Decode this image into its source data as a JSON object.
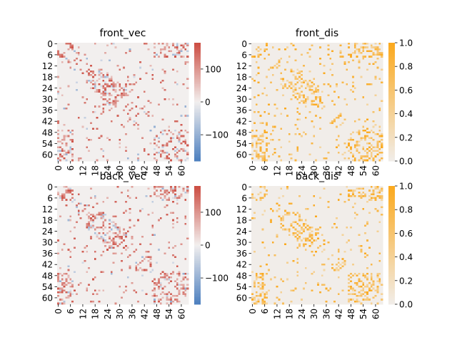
{
  "colors": {
    "diverging_low": "#4c7fbf",
    "diverging_mid": "#f2efee",
    "diverging_high": "#cc4c41",
    "sequential_low": "#f1ede9",
    "sequential_high": "#fba91d"
  },
  "chart_data": [
    {
      "type": "heatmap",
      "title": "front_vec",
      "matrix_size": 64,
      "x_ticks": [
        "0",
        "6",
        "12",
        "18",
        "24",
        "30",
        "36",
        "42",
        "48",
        "54",
        "60"
      ],
      "y_ticks": [
        "0",
        "6",
        "12",
        "18",
        "24",
        "30",
        "36",
        "42",
        "48",
        "54",
        "60"
      ],
      "colormap": "diverging",
      "vmin": -180,
      "vmax": 180,
      "colorbar_ticks": [
        "100",
        "0",
        "−100"
      ],
      "colorbar_tick_values": [
        100,
        0,
        -100
      ],
      "pattern_seed": 11
    },
    {
      "type": "heatmap",
      "title": "front_dis",
      "matrix_size": 64,
      "x_ticks": [
        "0",
        "6",
        "12",
        "18",
        "24",
        "30",
        "36",
        "42",
        "48",
        "54",
        "60"
      ],
      "y_ticks": [
        "0",
        "6",
        "12",
        "18",
        "24",
        "30",
        "36",
        "42",
        "48",
        "54",
        "60"
      ],
      "colormap": "sequential",
      "vmin": 0,
      "vmax": 1,
      "colorbar_ticks": [
        "1.0",
        "0.8",
        "0.6",
        "0.4",
        "0.2",
        "0.0"
      ],
      "colorbar_tick_values": [
        1.0,
        0.8,
        0.6,
        0.4,
        0.2,
        0.0
      ],
      "pattern_seed": 23
    },
    {
      "type": "heatmap",
      "title": "back_vec",
      "matrix_size": 64,
      "x_ticks": [
        "0",
        "6",
        "12",
        "18",
        "24",
        "30",
        "36",
        "42",
        "48",
        "54",
        "60"
      ],
      "y_ticks": [
        "0",
        "6",
        "12",
        "18",
        "24",
        "30",
        "36",
        "42",
        "48",
        "54",
        "60"
      ],
      "colormap": "diverging",
      "vmin": -180,
      "vmax": 180,
      "colorbar_ticks": [
        "100",
        "0",
        "−100"
      ],
      "colorbar_tick_values": [
        100,
        0,
        -100
      ],
      "pattern_seed": 37
    },
    {
      "type": "heatmap",
      "title": "back_dis",
      "matrix_size": 64,
      "x_ticks": [
        "0",
        "6",
        "12",
        "18",
        "24",
        "30",
        "36",
        "42",
        "48",
        "54",
        "60"
      ],
      "y_ticks": [
        "0",
        "6",
        "12",
        "18",
        "24",
        "30",
        "36",
        "42",
        "48",
        "54",
        "60"
      ],
      "colormap": "sequential",
      "vmin": 0,
      "vmax": 1,
      "colorbar_ticks": [
        "1.0",
        "0.8",
        "0.6",
        "0.4",
        "0.2",
        "0.0"
      ],
      "colorbar_tick_values": [
        1.0,
        0.8,
        0.6,
        0.4,
        0.2,
        0.0
      ],
      "pattern_seed": 41
    }
  ]
}
